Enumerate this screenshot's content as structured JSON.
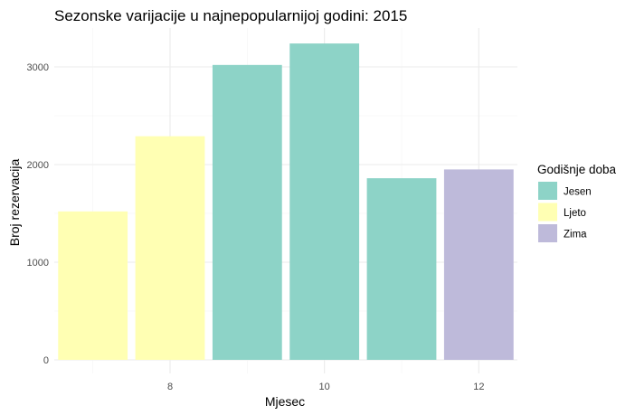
{
  "chart_data": {
    "type": "bar",
    "title": "Sezonske varijacije u najnepopularnijoj godini: 2015",
    "xlabel": "Mjesec",
    "ylabel": "Broj rezervacija",
    "x": [
      7,
      8,
      9,
      10,
      11,
      12
    ],
    "values": [
      1520,
      2290,
      3020,
      3240,
      1860,
      1950
    ],
    "groups": [
      "Ljeto",
      "Ljeto",
      "Jesen",
      "Jesen",
      "Jesen",
      "Zima"
    ],
    "xlim": [
      6.5,
      12.5
    ],
    "ylim": [
      0,
      3400
    ],
    "x_ticks": [
      8,
      10,
      12
    ],
    "y_ticks": [
      0,
      1000,
      2000,
      3000
    ],
    "grid": true,
    "legend": {
      "title": "Godišnje doba",
      "position": "right",
      "entries": [
        {
          "label": "Jesen",
          "color": "#8dd3c7"
        },
        {
          "label": "Ljeto",
          "color": "#ffffb3"
        },
        {
          "label": "Zima",
          "color": "#bebada"
        }
      ]
    }
  }
}
